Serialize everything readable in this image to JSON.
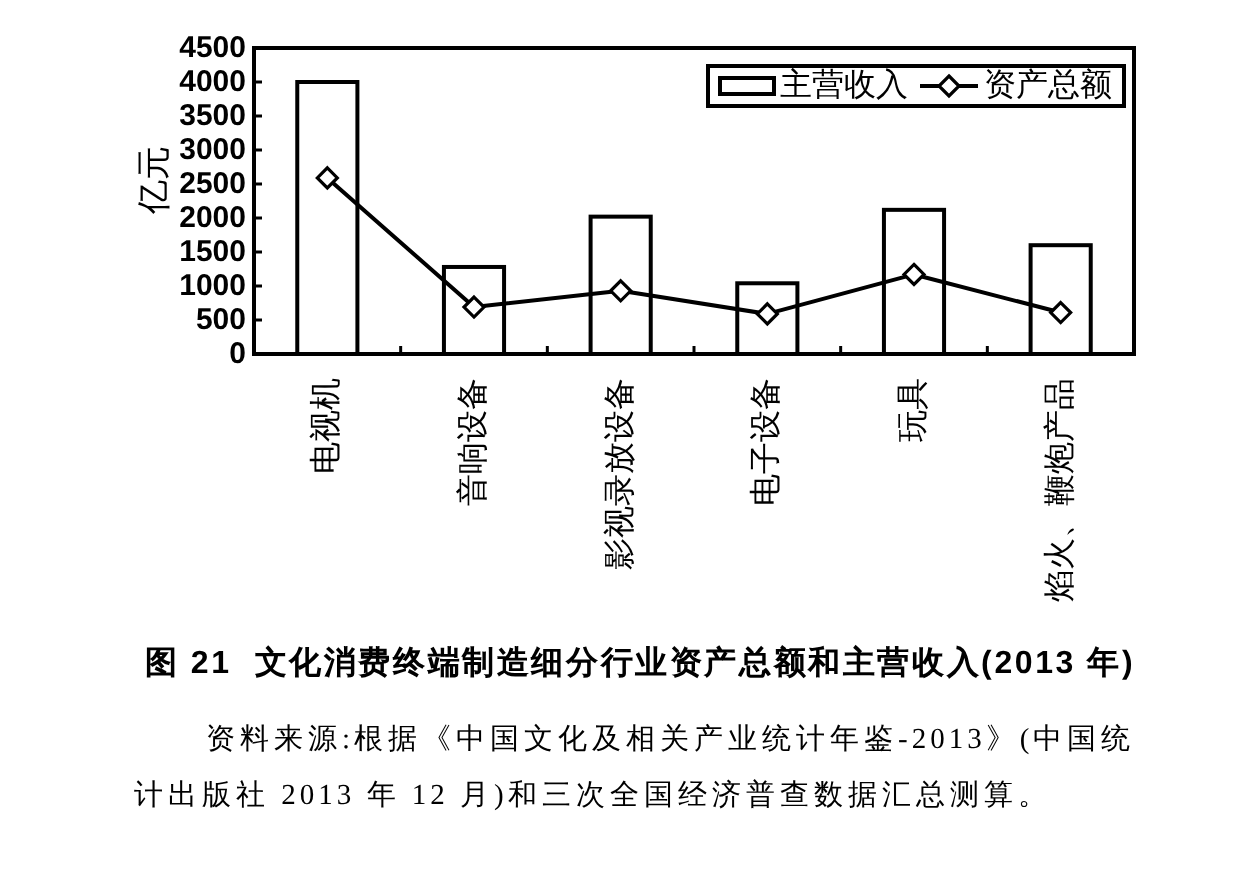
{
  "chart_data": {
    "type": "bar",
    "title": "图 21  文化消费终端制造细分行业资产总额和主营收入(2013 年)",
    "ylabel": "亿元",
    "categories": [
      "电视机",
      "音响设备",
      "影视录放设备",
      "电子设备",
      "玩具",
      "焰火、鞭炮产品"
    ],
    "series": [
      {
        "name": "主营收入",
        "color": "#ffffff",
        "values": [
          4000,
          1280,
          2020,
          1040,
          2120,
          1600
        ]
      },
      {
        "name": "资产总额",
        "type": "line",
        "color": "#000000",
        "marker": "diamond",
        "line_style": "solid",
        "values": [
          2590,
          690,
          930,
          590,
          1170,
          610
        ]
      }
    ],
    "ylim": [
      0,
      4500
    ],
    "yticks": [
      0,
      500,
      1000,
      1500,
      2000,
      2500,
      3000,
      3500,
      4000,
      4500
    ],
    "legend": "top right",
    "annotations": [
      "资料来源:根据《中国文化及相关产业统计年鉴-2013》(中国统计出版社 2013 年 12 月)和三次全国经济普查数据汇总测算。"
    ]
  }
}
